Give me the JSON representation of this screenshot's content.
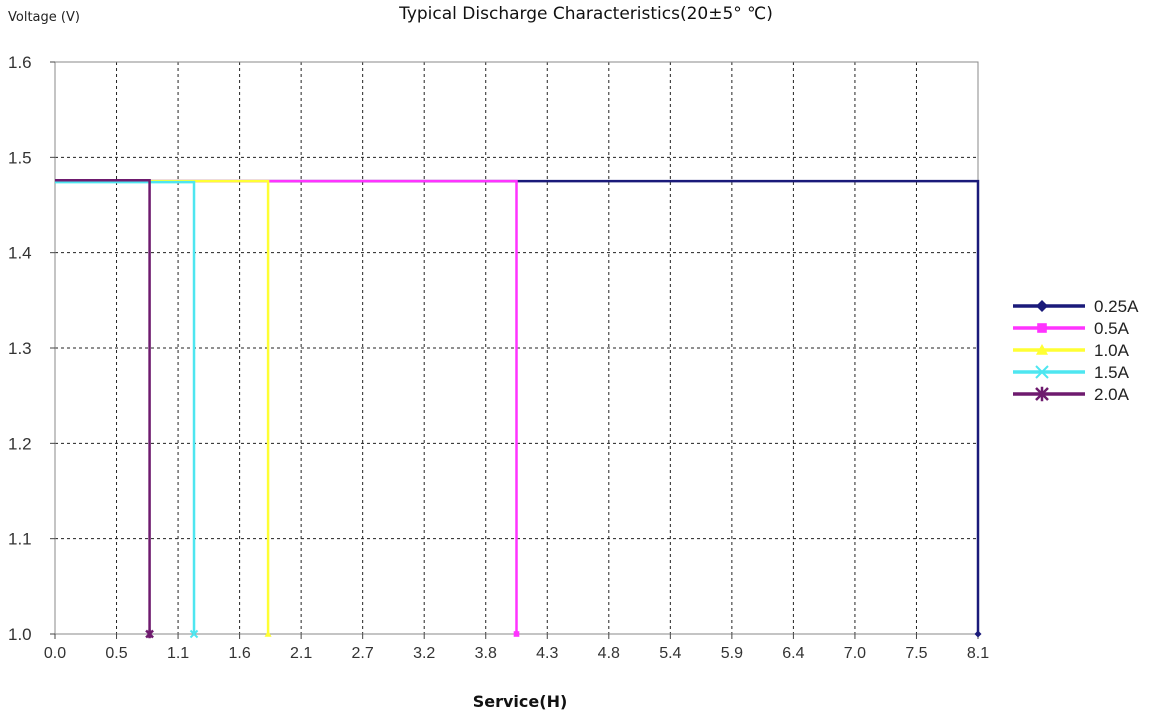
{
  "chart_data": {
    "type": "line",
    "title": "Typical Discharge Characteristics(20±5° ℃)",
    "ylabel": "Voltage (V)",
    "xlabel": "Service(H)",
    "x_ticks": [
      "0.0",
      "0.5",
      "1.1",
      "1.6",
      "2.1",
      "2.7",
      "3.2",
      "3.8",
      "4.3",
      "4.8",
      "5.4",
      "5.9",
      "6.4",
      "7.0",
      "7.5",
      "8.1"
    ],
    "y_ticks": [
      "1.6",
      "1.5",
      "1.4",
      "1.3",
      "1.2",
      "1.1",
      "1.0"
    ],
    "xlim": [
      0,
      8.1
    ],
    "ylim": [
      1.0,
      1.6
    ],
    "grid": true,
    "legend_position": "right",
    "series": [
      {
        "name": "0.25A",
        "color": "#1a1a7a",
        "marker": "diamond",
        "x": [
          0,
          8.1,
          8.1
        ],
        "y": [
          1.475,
          1.475,
          1.0
        ]
      },
      {
        "name": "0.5A",
        "color": "#ff33ff",
        "marker": "square",
        "x": [
          0,
          4.05,
          4.05
        ],
        "y": [
          1.475,
          1.475,
          1.0
        ]
      },
      {
        "name": "1.0A",
        "color": "#ffff33",
        "marker": "triangle",
        "x": [
          0,
          1.87,
          1.87
        ],
        "y": [
          1.475,
          1.475,
          1.0
        ]
      },
      {
        "name": "1.5A",
        "color": "#4ee6f0",
        "marker": "x",
        "x": [
          0,
          1.22,
          1.22
        ],
        "y": [
          1.474,
          1.474,
          1.0
        ]
      },
      {
        "name": "2.0A",
        "color": "#6e1a6e",
        "marker": "star",
        "x": [
          0,
          0.83,
          0.83
        ],
        "y": [
          1.476,
          1.476,
          1.0
        ]
      }
    ]
  }
}
